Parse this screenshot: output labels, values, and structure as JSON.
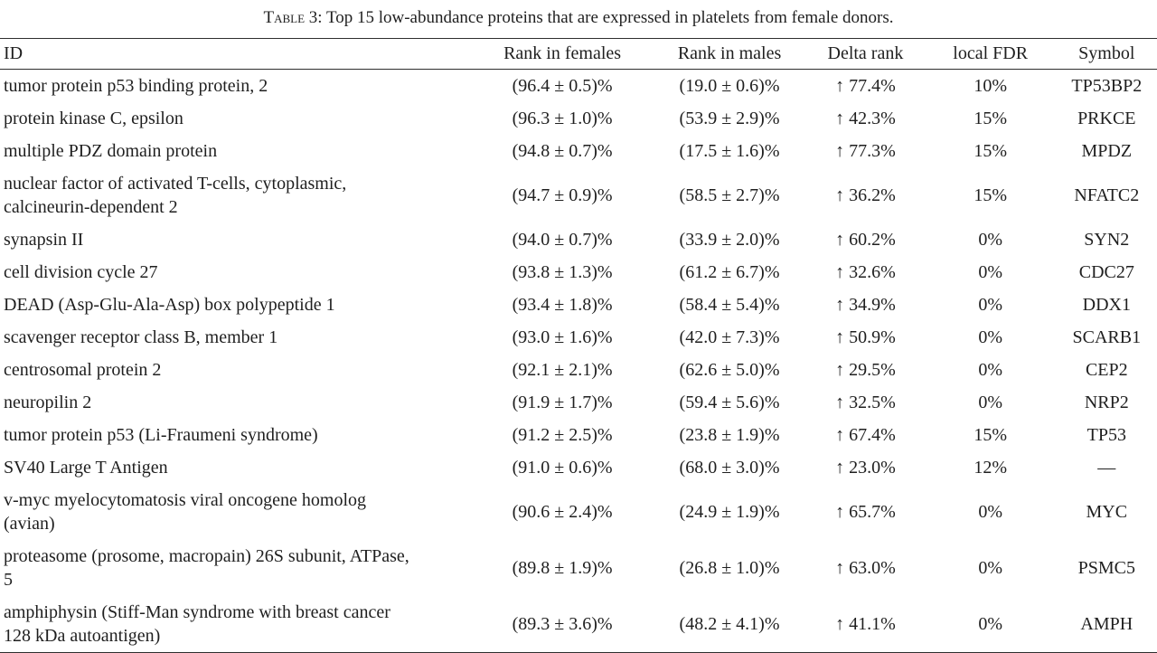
{
  "table": {
    "title_label": "Table 3:",
    "title_rest": " Top 15 low-abundance proteins that are expressed in platelets from female donors.",
    "columns": [
      "ID",
      "Rank in females",
      "Rank in males",
      "Delta rank",
      "local FDR",
      "Symbol"
    ],
    "rows": [
      {
        "id": "tumor protein p53 binding protein, 2",
        "rank_females": "(96.4 ± 0.5)%",
        "rank_males": "(19.0 ± 0.6)%",
        "delta_rank": "↑ 77.4%",
        "local_fdr": "10%",
        "symbol": "TP53BP2"
      },
      {
        "id": "protein kinase C, epsilon",
        "rank_females": "(96.3 ± 1.0)%",
        "rank_males": "(53.9 ± 2.9)%",
        "delta_rank": "↑ 42.3%",
        "local_fdr": "15%",
        "symbol": "PRKCE"
      },
      {
        "id": "multiple PDZ domain protein",
        "rank_females": "(94.8 ± 0.7)%",
        "rank_males": "(17.5 ± 1.6)%",
        "delta_rank": "↑ 77.3%",
        "local_fdr": "15%",
        "symbol": "MPDZ"
      },
      {
        "id": "nuclear factor of activated T-cells, cytoplasmic, calcineurin-dependent 2",
        "rank_females": "(94.7 ± 0.9)%",
        "rank_males": "(58.5 ± 2.7)%",
        "delta_rank": "↑ 36.2%",
        "local_fdr": "15%",
        "symbol": "NFATC2"
      },
      {
        "id": "synapsin II",
        "rank_females": "(94.0 ± 0.7)%",
        "rank_males": "(33.9 ± 2.0)%",
        "delta_rank": "↑ 60.2%",
        "local_fdr": "0%",
        "symbol": "SYN2"
      },
      {
        "id": "cell division cycle 27",
        "rank_females": "(93.8 ± 1.3)%",
        "rank_males": "(61.2 ± 6.7)%",
        "delta_rank": "↑ 32.6%",
        "local_fdr": "0%",
        "symbol": "CDC27"
      },
      {
        "id": "DEAD (Asp-Glu-Ala-Asp) box polypeptide 1",
        "rank_females": "(93.4 ± 1.8)%",
        "rank_males": "(58.4 ± 5.4)%",
        "delta_rank": "↑ 34.9%",
        "local_fdr": "0%",
        "symbol": "DDX1"
      },
      {
        "id": "scavenger receptor class B, member 1",
        "rank_females": "(93.0 ± 1.6)%",
        "rank_males": "(42.0 ± 7.3)%",
        "delta_rank": "↑ 50.9%",
        "local_fdr": "0%",
        "symbol": "SCARB1"
      },
      {
        "id": "centrosomal protein 2",
        "rank_females": "(92.1 ± 2.1)%",
        "rank_males": "(62.6 ± 5.0)%",
        "delta_rank": "↑ 29.5%",
        "local_fdr": "0%",
        "symbol": "CEP2"
      },
      {
        "id": "neuropilin 2",
        "rank_females": "(91.9 ± 1.7)%",
        "rank_males": "(59.4 ± 5.6)%",
        "delta_rank": "↑ 32.5%",
        "local_fdr": "0%",
        "symbol": "NRP2"
      },
      {
        "id": "tumor protein p53 (Li-Fraumeni syndrome)",
        "rank_females": "(91.2 ± 2.5)%",
        "rank_males": "(23.8 ± 1.9)%",
        "delta_rank": "↑ 67.4%",
        "local_fdr": "15%",
        "symbol": "TP53"
      },
      {
        "id": "SV40 Large T Antigen",
        "rank_females": "(91.0 ± 0.6)%",
        "rank_males": "(68.0 ± 3.0)%",
        "delta_rank": "↑ 23.0%",
        "local_fdr": "12%",
        "symbol": "—"
      },
      {
        "id": "v-myc myelocytomatosis viral oncogene homolog (avian)",
        "rank_females": "(90.6 ± 2.4)%",
        "rank_males": "(24.9 ± 1.9)%",
        "delta_rank": "↑ 65.7%",
        "local_fdr": "0%",
        "symbol": "MYC"
      },
      {
        "id": "proteasome (prosome, macropain) 26S subunit, ATPase, 5",
        "rank_females": "(89.8 ± 1.9)%",
        "rank_males": "(26.8 ± 1.0)%",
        "delta_rank": "↑ 63.0%",
        "local_fdr": "0%",
        "symbol": "PSMC5"
      },
      {
        "id": "amphiphysin (Stiff-Man syndrome with breast cancer 128 kDa autoantigen)",
        "rank_females": "(89.3 ± 3.6)%",
        "rank_males": "(48.2 ± 4.1)%",
        "delta_rank": "↑ 41.1%",
        "local_fdr": "0%",
        "symbol": "AMPH"
      }
    ]
  }
}
